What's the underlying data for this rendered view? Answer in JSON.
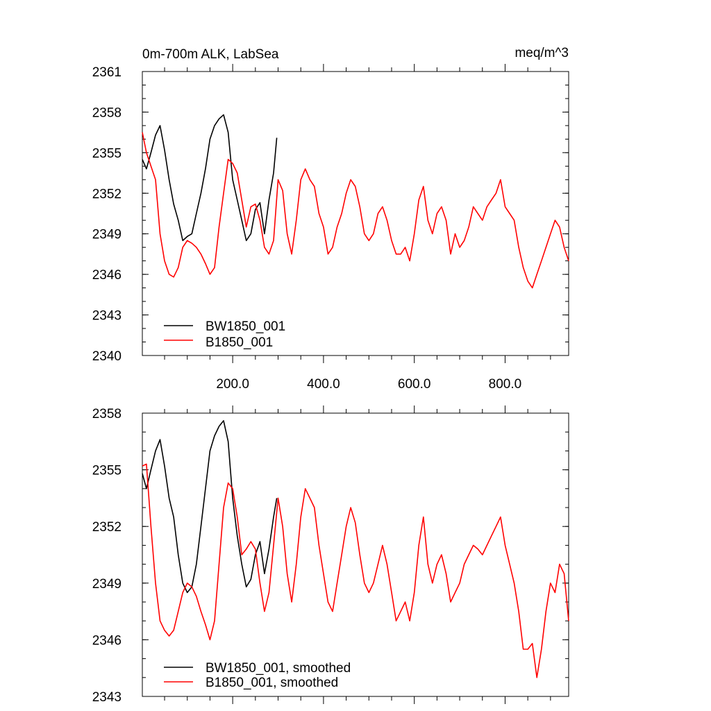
{
  "chart_data": [
    {
      "type": "line",
      "title": "0m-700m ALK, LabSea",
      "units": "meq/m^3",
      "xlim": [
        1,
        940
      ],
      "ylim": [
        2340,
        2361
      ],
      "x_ticks": [
        200,
        400,
        600,
        800
      ],
      "x_tick_labels": [
        "200.0",
        "400.0",
        "600.0",
        "800.0"
      ],
      "y_ticks": [
        2340,
        2343,
        2346,
        2349,
        2352,
        2355,
        2358,
        2361
      ],
      "y_tick_labels": [
        "2340",
        "2343",
        "2346",
        "2349",
        "2352",
        "2355",
        "2358",
        "2361"
      ],
      "legend_position": "lower-left",
      "series": [
        {
          "name": "BW1850_001",
          "color": "#000000",
          "x": [
            1,
            10,
            20,
            30,
            40,
            50,
            60,
            70,
            80,
            90,
            100,
            110,
            120,
            130,
            140,
            150,
            160,
            170,
            180,
            190,
            200,
            210,
            220,
            230,
            240,
            250,
            260,
            270,
            280,
            290,
            297
          ],
          "y": [
            2354.5,
            2353.8,
            2355.0,
            2356.3,
            2357.0,
            2355.2,
            2353.0,
            2351.2,
            2350.0,
            2348.5,
            2348.8,
            2349.0,
            2350.5,
            2352.0,
            2353.8,
            2356.0,
            2357.0,
            2357.5,
            2357.8,
            2356.5,
            2353.0,
            2351.5,
            2350.0,
            2348.5,
            2349.0,
            2350.8,
            2351.3,
            2349.0,
            2351.5,
            2353.5,
            2356.1
          ]
        },
        {
          "name": "B1850_001",
          "color": "#ff0000",
          "x": [
            1,
            10,
            20,
            30,
            40,
            50,
            60,
            70,
            80,
            90,
            100,
            110,
            120,
            130,
            140,
            150,
            160,
            170,
            180,
            190,
            200,
            210,
            220,
            230,
            240,
            250,
            260,
            270,
            280,
            290,
            300,
            310,
            320,
            330,
            340,
            350,
            360,
            370,
            380,
            390,
            400,
            410,
            420,
            430,
            440,
            450,
            460,
            470,
            480,
            490,
            500,
            510,
            520,
            530,
            540,
            550,
            560,
            570,
            580,
            590,
            600,
            610,
            620,
            630,
            640,
            650,
            660,
            670,
            680,
            690,
            700,
            710,
            720,
            730,
            740,
            750,
            760,
            770,
            780,
            790,
            800,
            810,
            820,
            830,
            840,
            850,
            860,
            870,
            880,
            890,
            900,
            910,
            920,
            930,
            940
          ],
          "y": [
            2356.5,
            2355.0,
            2354.0,
            2353.0,
            2349.0,
            2347.0,
            2346.0,
            2345.8,
            2346.5,
            2348.0,
            2348.5,
            2348.3,
            2348.0,
            2347.5,
            2346.8,
            2346.0,
            2346.5,
            2349.5,
            2352.0,
            2354.5,
            2354.2,
            2353.5,
            2351.5,
            2349.5,
            2351.0,
            2351.2,
            2350.0,
            2348.0,
            2347.5,
            2348.5,
            2353.0,
            2352.2,
            2349.0,
            2347.5,
            2350.0,
            2353.0,
            2353.8,
            2353.0,
            2352.5,
            2350.5,
            2349.5,
            2347.5,
            2348.0,
            2349.5,
            2350.5,
            2352.0,
            2353.0,
            2352.5,
            2351.0,
            2349.0,
            2348.5,
            2349.0,
            2350.5,
            2351.0,
            2350.0,
            2348.5,
            2347.5,
            2347.5,
            2348.0,
            2347.0,
            2349.0,
            2351.5,
            2352.5,
            2350.0,
            2349.0,
            2350.5,
            2351.0,
            2350.0,
            2347.5,
            2349.0,
            2348.0,
            2348.5,
            2349.5,
            2351.0,
            2350.5,
            2350.0,
            2351.0,
            2351.5,
            2352.0,
            2353.0,
            2351.0,
            2350.5,
            2350.0,
            2348.0,
            2346.5,
            2345.5,
            2345.0,
            2346.0,
            2347.0,
            2348.0,
            2349.0,
            2350.0,
            2349.5,
            2348.0,
            2347.0
          ]
        }
      ]
    },
    {
      "type": "line",
      "xlim": [
        1,
        940
      ],
      "ylim": [
        2343,
        2358
      ],
      "y_ticks": [
        2343,
        2346,
        2349,
        2352,
        2355,
        2358
      ],
      "y_tick_labels": [
        "2343",
        "2346",
        "2349",
        "2352",
        "2355",
        "2358"
      ],
      "legend_position": "lower-left",
      "series": [
        {
          "name": "BW1850_001, smoothed",
          "color": "#000000",
          "x": [
            1,
            10,
            20,
            30,
            40,
            50,
            60,
            70,
            80,
            90,
            100,
            110,
            120,
            130,
            140,
            150,
            160,
            170,
            180,
            190,
            200,
            210,
            220,
            230,
            240,
            250,
            260,
            270,
            280,
            290,
            297
          ],
          "y": [
            2354.8,
            2354.0,
            2355.0,
            2356.0,
            2356.6,
            2355.2,
            2353.5,
            2352.5,
            2350.5,
            2349.0,
            2348.5,
            2348.8,
            2350.0,
            2352.0,
            2354.0,
            2356.0,
            2356.8,
            2357.3,
            2357.6,
            2356.5,
            2353.5,
            2351.5,
            2350.0,
            2348.8,
            2349.2,
            2350.5,
            2351.2,
            2349.5,
            2350.8,
            2352.5,
            2353.5
          ]
        },
        {
          "name": "B1850_001, smoothed",
          "color": "#ff0000",
          "x": [
            1,
            10,
            20,
            30,
            40,
            50,
            60,
            70,
            80,
            90,
            100,
            110,
            120,
            130,
            140,
            150,
            160,
            170,
            180,
            190,
            200,
            210,
            220,
            230,
            240,
            250,
            260,
            270,
            280,
            290,
            300,
            310,
            320,
            330,
            340,
            350,
            360,
            370,
            380,
            390,
            400,
            410,
            420,
            430,
            440,
            450,
            460,
            470,
            480,
            490,
            500,
            510,
            520,
            530,
            540,
            550,
            560,
            570,
            580,
            590,
            600,
            610,
            620,
            630,
            640,
            650,
            660,
            670,
            680,
            690,
            700,
            710,
            720,
            730,
            740,
            750,
            760,
            770,
            780,
            790,
            800,
            810,
            820,
            830,
            840,
            850,
            860,
            870,
            880,
            890,
            900,
            910,
            920,
            930,
            940
          ],
          "y": [
            2355.2,
            2355.3,
            2352.0,
            2349.0,
            2347.0,
            2346.5,
            2346.2,
            2346.5,
            2347.5,
            2348.5,
            2349.0,
            2348.8,
            2348.3,
            2347.5,
            2346.8,
            2346.0,
            2347.0,
            2350.0,
            2353.0,
            2354.3,
            2354.0,
            2352.5,
            2350.5,
            2350.8,
            2351.2,
            2350.8,
            2349.0,
            2347.5,
            2348.5,
            2351.0,
            2353.5,
            2352.0,
            2349.5,
            2348.0,
            2350.0,
            2352.5,
            2354.0,
            2353.5,
            2353.0,
            2351.0,
            2349.5,
            2348.0,
            2347.5,
            2349.0,
            2350.5,
            2352.0,
            2353.0,
            2352.2,
            2350.5,
            2349.0,
            2348.5,
            2349.0,
            2350.0,
            2351.0,
            2350.0,
            2348.5,
            2347.0,
            2347.5,
            2348.0,
            2347.0,
            2348.5,
            2351.0,
            2352.5,
            2350.0,
            2349.0,
            2350.0,
            2350.5,
            2349.5,
            2348.0,
            2348.5,
            2349.0,
            2350.0,
            2350.5,
            2351.0,
            2350.8,
            2350.5,
            2351.0,
            2351.5,
            2352.0,
            2352.5,
            2351.0,
            2350.0,
            2349.0,
            2347.5,
            2345.5,
            2345.5,
            2345.8,
            2344.0,
            2345.5,
            2347.5,
            2349.0,
            2348.5,
            2350.0,
            2349.5,
            2347.0
          ]
        }
      ]
    }
  ]
}
